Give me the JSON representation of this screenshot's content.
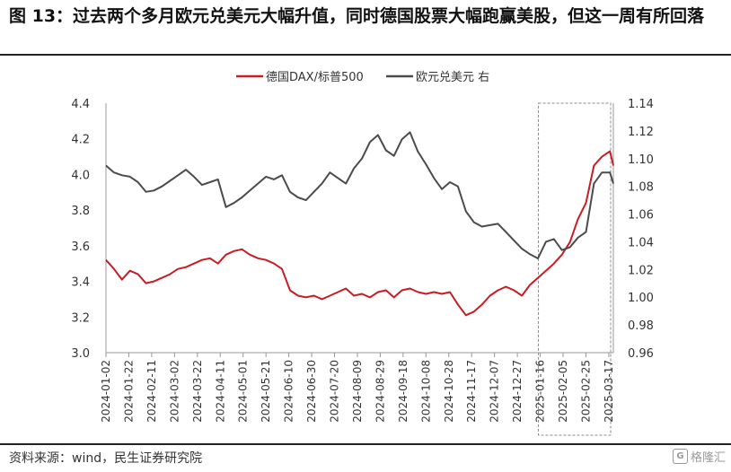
{
  "title": "图 13：过去两个多月欧元兑美元大幅升值，同时德国股票大幅跑赢美股，但这一周有所回落",
  "source": "资料来源：wind，民生证券研究院",
  "watermark": "格隆汇",
  "colors": {
    "dax_sp": "#c81d25",
    "eurusd": "#4b4b4b",
    "axis": "#999999",
    "highlight_box": "#888888"
  },
  "chart_data": {
    "type": "line",
    "legend_position": "top-center",
    "grid": false,
    "x_ticks": [
      "2024-01-02",
      "2024-01-22",
      "2024-02-11",
      "2024-03-02",
      "2024-03-22",
      "2024-04-11",
      "2024-05-01",
      "2024-05-21",
      "2024-06-10",
      "2024-06-30",
      "2024-07-20",
      "2024-08-09",
      "2024-08-29",
      "2024-09-18",
      "2024-10-08",
      "2024-10-28",
      "2024-11-17",
      "2024-12-07",
      "2024-12-27",
      "2025-01-16",
      "2025-02-05",
      "2025-02-25",
      "2025-03-17"
    ],
    "y_left": {
      "ticks": [
        "4.4",
        "4.2",
        "4.0",
        "3.8",
        "3.6",
        "3.4",
        "3.2",
        "3.0"
      ],
      "range": [
        3.0,
        4.4
      ]
    },
    "y_right": {
      "ticks": [
        "1.14",
        "1.12",
        "1.10",
        "1.08",
        "1.06",
        "1.04",
        "1.02",
        "1.00",
        "0.98",
        "0.96"
      ],
      "range": [
        0.96,
        1.14
      ]
    },
    "highlight_range": [
      "2025-01-16",
      "2025-03-21"
    ],
    "series": [
      {
        "name": "德国DAX/标普500",
        "axis": "left",
        "x": [
          "2024-01-02",
          "2024-01-09",
          "2024-01-16",
          "2024-01-23",
          "2024-01-30",
          "2024-02-06",
          "2024-02-13",
          "2024-02-20",
          "2024-02-27",
          "2024-03-05",
          "2024-03-12",
          "2024-03-19",
          "2024-03-26",
          "2024-04-02",
          "2024-04-09",
          "2024-04-16",
          "2024-04-23",
          "2024-04-30",
          "2024-05-07",
          "2024-05-14",
          "2024-05-21",
          "2024-05-28",
          "2024-06-04",
          "2024-06-11",
          "2024-06-18",
          "2024-06-25",
          "2024-07-02",
          "2024-07-09",
          "2024-07-16",
          "2024-07-23",
          "2024-07-30",
          "2024-08-06",
          "2024-08-13",
          "2024-08-20",
          "2024-08-27",
          "2024-09-03",
          "2024-09-10",
          "2024-09-17",
          "2024-09-24",
          "2024-10-01",
          "2024-10-08",
          "2024-10-15",
          "2024-10-22",
          "2024-10-29",
          "2024-11-05",
          "2024-11-12",
          "2024-11-19",
          "2024-11-26",
          "2024-12-03",
          "2024-12-10",
          "2024-12-17",
          "2024-12-24",
          "2024-12-31",
          "2025-01-07",
          "2025-01-14",
          "2025-01-21",
          "2025-01-28",
          "2025-02-04",
          "2025-02-11",
          "2025-02-18",
          "2025-02-25",
          "2025-03-04",
          "2025-03-11",
          "2025-03-18",
          "2025-03-21"
        ],
        "values": [
          3.52,
          3.47,
          3.41,
          3.46,
          3.44,
          3.39,
          3.4,
          3.42,
          3.44,
          3.47,
          3.48,
          3.5,
          3.52,
          3.53,
          3.5,
          3.55,
          3.57,
          3.58,
          3.55,
          3.53,
          3.52,
          3.5,
          3.47,
          3.35,
          3.32,
          3.31,
          3.32,
          3.3,
          3.32,
          3.34,
          3.36,
          3.32,
          3.33,
          3.31,
          3.34,
          3.35,
          3.31,
          3.35,
          3.36,
          3.34,
          3.33,
          3.34,
          3.33,
          3.34,
          3.27,
          3.21,
          3.23,
          3.27,
          3.32,
          3.35,
          3.37,
          3.35,
          3.32,
          3.38,
          3.42,
          3.46,
          3.5,
          3.55,
          3.62,
          3.75,
          3.84,
          4.05,
          4.1,
          4.13,
          4.05
        ]
      },
      {
        "name": "欧元兑美元 右",
        "axis": "right",
        "x": [
          "2024-01-02",
          "2024-01-09",
          "2024-01-16",
          "2024-01-23",
          "2024-01-30",
          "2024-02-06",
          "2024-02-13",
          "2024-02-20",
          "2024-02-27",
          "2024-03-05",
          "2024-03-12",
          "2024-03-19",
          "2024-03-26",
          "2024-04-02",
          "2024-04-09",
          "2024-04-16",
          "2024-04-23",
          "2024-04-30",
          "2024-05-07",
          "2024-05-14",
          "2024-05-21",
          "2024-05-28",
          "2024-06-04",
          "2024-06-11",
          "2024-06-18",
          "2024-06-25",
          "2024-07-02",
          "2024-07-09",
          "2024-07-16",
          "2024-07-23",
          "2024-07-30",
          "2024-08-06",
          "2024-08-13",
          "2024-08-20",
          "2024-08-27",
          "2024-09-03",
          "2024-09-10",
          "2024-09-17",
          "2024-09-24",
          "2024-10-01",
          "2024-10-08",
          "2024-10-15",
          "2024-10-22",
          "2024-10-29",
          "2024-11-05",
          "2024-11-12",
          "2024-11-19",
          "2024-11-26",
          "2024-12-03",
          "2024-12-10",
          "2024-12-17",
          "2024-12-24",
          "2024-12-31",
          "2025-01-07",
          "2025-01-14",
          "2025-01-21",
          "2025-01-28",
          "2025-02-04",
          "2025-02-11",
          "2025-02-18",
          "2025-02-25",
          "2025-03-04",
          "2025-03-11",
          "2025-03-18",
          "2025-03-21"
        ],
        "values": [
          1.095,
          1.09,
          1.088,
          1.087,
          1.083,
          1.076,
          1.077,
          1.08,
          1.084,
          1.088,
          1.092,
          1.087,
          1.081,
          1.083,
          1.085,
          1.065,
          1.068,
          1.072,
          1.077,
          1.082,
          1.087,
          1.085,
          1.088,
          1.076,
          1.072,
          1.07,
          1.076,
          1.082,
          1.09,
          1.086,
          1.082,
          1.093,
          1.1,
          1.112,
          1.117,
          1.106,
          1.102,
          1.114,
          1.119,
          1.105,
          1.096,
          1.086,
          1.078,
          1.083,
          1.08,
          1.062,
          1.054,
          1.051,
          1.052,
          1.053,
          1.047,
          1.041,
          1.035,
          1.031,
          1.028,
          1.04,
          1.042,
          1.034,
          1.036,
          1.043,
          1.047,
          1.082,
          1.09,
          1.09,
          1.082
        ]
      }
    ]
  }
}
